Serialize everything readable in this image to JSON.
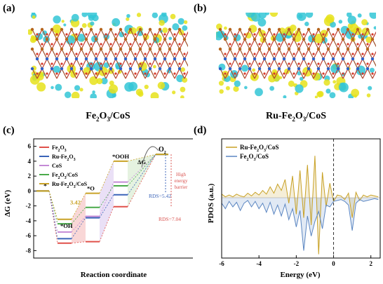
{
  "panels": {
    "a": {
      "label": "(a)",
      "caption_parts": [
        "Fe",
        "2",
        "O",
        "3",
        "/CoS"
      ]
    },
    "b": {
      "label": "(b)",
      "caption_parts": [
        "Ru-Fe",
        "2",
        "O",
        "3",
        "/CoS"
      ]
    },
    "c": {
      "label": "(c)"
    },
    "d": {
      "label": "(d)"
    }
  },
  "colors": {
    "Fe2O3": "#e0504a",
    "Ru-Fe2O3": "#3a63b8",
    "CoS": "#c48ad6",
    "Fe2O3/CoS": "#4aaa4a",
    "Ru-Fe2O3/CoS": "#c9a227",
    "pdos_ru": "#c8a125",
    "pdos_fe": "#5b86c2"
  },
  "chart_data": [
    {
      "type": "line",
      "title": "",
      "xlabel": "Reaction coordinate",
      "ylabel": "ΔG (eV)",
      "ylim": [
        -9,
        7
      ],
      "yticks": [
        "6",
        "4",
        "2",
        "0",
        "-2",
        "-4",
        "-6",
        "-8"
      ],
      "ytick_values": [
        6,
        4,
        2,
        0,
        -2,
        -4,
        -6,
        -8
      ],
      "categories": [
        "*",
        "*OH",
        "*O",
        "*OOH",
        "O2"
      ],
      "series": [
        {
          "name": "Fe2O3",
          "values": [
            0,
            -7.0,
            -6.8,
            -2.1,
            4.92
          ]
        },
        {
          "name": "Ru-Fe2O3",
          "values": [
            0,
            -6.4,
            -3.6,
            -0.5,
            4.92
          ]
        },
        {
          "name": "CoS",
          "values": [
            0,
            -5.5,
            -3.4,
            1.2,
            4.92
          ]
        },
        {
          "name": "Fe2O3/CoS",
          "values": [
            0,
            -4.4,
            -2.2,
            0.7,
            4.92
          ]
        },
        {
          "name": "Ru-Fe2O3/CoS",
          "values": [
            0,
            -3.8,
            -0.3,
            4.0,
            4.92
          ]
        }
      ],
      "legend_parts": [
        [
          "Fe",
          "2",
          "O",
          "3",
          ""
        ],
        [
          "Ru-Fe",
          "2",
          "O",
          "3",
          ""
        ],
        [
          "CoS",
          "",
          "",
          "",
          ""
        ],
        [
          "Fe",
          "2",
          "O",
          "3",
          "/CoS"
        ],
        [
          "Ru-Fe",
          "2",
          "O",
          "3",
          "/CoS"
        ]
      ],
      "legend_placement": "top-left",
      "annotations": {
        "dg": "ΔG",
        "o2": "O",
        "o2_sub": "2",
        "high1": "High",
        "high2": "energy",
        "high3": "barrier",
        "rds1": "RDS=5.42",
        "rds2": "RDS=7.04",
        "val": "3.42",
        "lbl_star": "*",
        "lbl_oh": "*OH",
        "lbl_o": "*O",
        "lbl_ooh": "*OOH"
      }
    },
    {
      "type": "line",
      "title": "",
      "xlabel": "Energy (eV)",
      "ylabel": "PDOS (a.u.)",
      "xlim": [
        -6,
        2.5
      ],
      "xticks": [
        "-6",
        "-4",
        "-2",
        "0",
        "2"
      ],
      "xtick_values": [
        -6,
        -4,
        -2,
        0,
        2
      ],
      "fermi_level": 0,
      "legend_parts": [
        [
          "Ru-Fe",
          "2",
          "O",
          "3",
          "/CoS"
        ],
        [
          "Fe",
          "2",
          "O",
          "3",
          "/CoS"
        ]
      ],
      "legend_placement": "top-left",
      "series": [
        {
          "name": "Ru-Fe2O3/CoS",
          "x": [
            -6.0,
            -5.8,
            -5.6,
            -5.4,
            -5.2,
            -5.0,
            -4.8,
            -4.6,
            -4.4,
            -4.2,
            -4.0,
            -3.8,
            -3.6,
            -3.4,
            -3.2,
            -3.0,
            -2.8,
            -2.6,
            -2.4,
            -2.2,
            -2.0,
            -1.8,
            -1.6,
            -1.4,
            -1.2,
            -1.0,
            -0.8,
            -0.6,
            -0.4,
            -0.2,
            0.0,
            0.2,
            0.4,
            0.6,
            0.8,
            1.0,
            1.2,
            1.4,
            1.6,
            1.8,
            2.0,
            2.2,
            2.4
          ],
          "values": [
            0.4,
            0.1,
            0.3,
            0.1,
            0.4,
            0.2,
            0.1,
            0.5,
            0.2,
            0.6,
            0.3,
            0.8,
            0.4,
            1.2,
            0.5,
            1.5,
            0.8,
            2.0,
            -0.6,
            2.4,
            -1.8,
            3.0,
            -2.2,
            3.6,
            -3.0,
            4.6,
            -6.2,
            2.8,
            -1.0,
            1.6,
            -0.4,
            0.3,
            0.2,
            -0.2,
            0.5,
            -2.2,
            0.6,
            -0.3,
            0.3,
            0.1,
            0.3,
            0.2,
            0.1
          ]
        },
        {
          "name": "Fe2O3/CoS",
          "x": [
            -6.0,
            -5.8,
            -5.6,
            -5.4,
            -5.2,
            -5.0,
            -4.8,
            -4.6,
            -4.4,
            -4.2,
            -4.0,
            -3.8,
            -3.6,
            -3.4,
            -3.2,
            -3.0,
            -2.8,
            -2.6,
            -2.4,
            -2.2,
            -2.0,
            -1.8,
            -1.6,
            -1.4,
            -1.2,
            -1.0,
            -0.8,
            -0.6,
            -0.4,
            -0.2,
            0.0,
            0.2,
            0.4,
            0.6,
            0.8,
            1.0,
            1.2,
            1.4,
            1.6,
            1.8,
            2.0,
            2.2,
            2.4
          ],
          "values": [
            -0.6,
            -1.2,
            -0.4,
            -1.0,
            -0.5,
            -1.4,
            -0.6,
            -0.3,
            -1.0,
            -0.4,
            -1.2,
            -0.6,
            -1.6,
            -0.5,
            -1.8,
            -0.8,
            -2.0,
            -0.7,
            -2.4,
            -1.2,
            -3.2,
            -1.4,
            -5.8,
            -2.0,
            -4.2,
            -2.6,
            -1.5,
            -3.4,
            -0.8,
            -1.0,
            -0.4,
            -0.3,
            -0.2,
            -0.4,
            -0.8,
            -3.6,
            -0.6,
            -0.2,
            -0.4,
            -0.3,
            -0.2,
            -0.1,
            -0.2
          ]
        }
      ]
    }
  ]
}
